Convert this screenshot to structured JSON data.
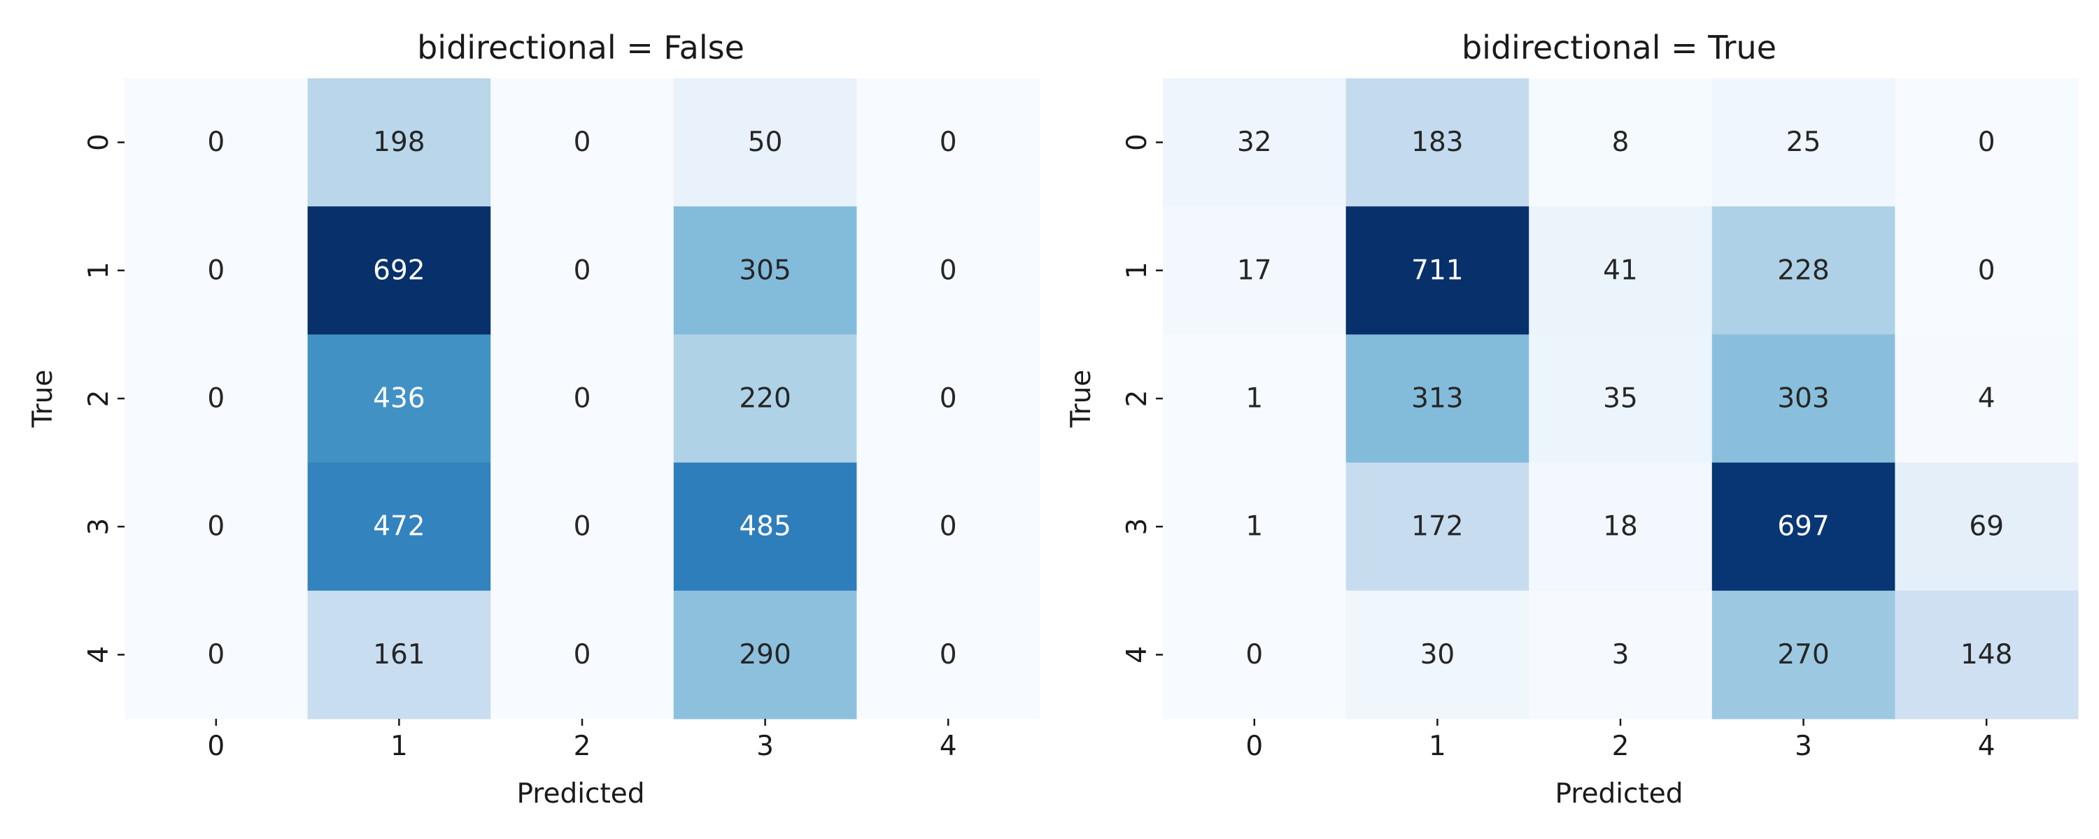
{
  "chart_data": [
    {
      "type": "heatmap",
      "title": "bidirectional = False",
      "xlabel": "Predicted",
      "ylabel": "True",
      "x_categories": [
        "0",
        "1",
        "2",
        "3",
        "4"
      ],
      "y_categories": [
        "0",
        "1",
        "2",
        "3",
        "4"
      ],
      "colormap": "Blues",
      "color_range": [
        0,
        692
      ],
      "values": [
        [
          0,
          198,
          0,
          50,
          0
        ],
        [
          0,
          692,
          0,
          305,
          0
        ],
        [
          0,
          436,
          0,
          220,
          0
        ],
        [
          0,
          472,
          0,
          485,
          0
        ],
        [
          0,
          161,
          0,
          290,
          0
        ]
      ],
      "colorbar": false,
      "grid": false
    },
    {
      "type": "heatmap",
      "title": "bidirectional = True",
      "xlabel": "Predicted",
      "ylabel": "True",
      "x_categories": [
        "0",
        "1",
        "2",
        "3",
        "4"
      ],
      "y_categories": [
        "0",
        "1",
        "2",
        "3",
        "4"
      ],
      "colormap": "Blues",
      "color_range": [
        0,
        711
      ],
      "values": [
        [
          32,
          183,
          8,
          25,
          0
        ],
        [
          17,
          711,
          41,
          228,
          0
        ],
        [
          1,
          313,
          35,
          303,
          4
        ],
        [
          1,
          172,
          18,
          697,
          69
        ],
        [
          0,
          30,
          3,
          270,
          148
        ]
      ],
      "colorbar": false,
      "grid": false
    }
  ]
}
